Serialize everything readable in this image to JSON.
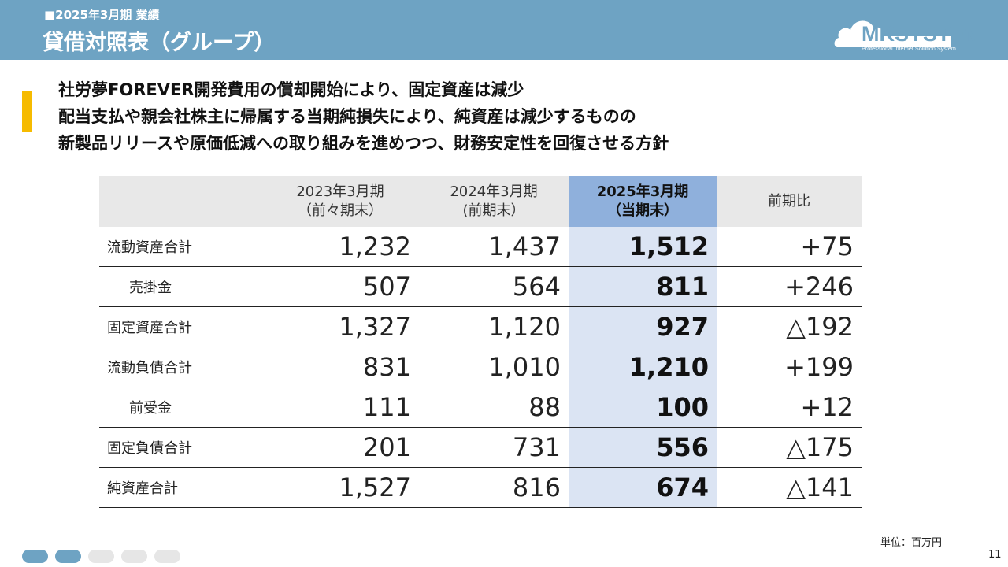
{
  "header": {
    "subtitle": "■2025年3月期 業績",
    "title": "貸借対照表（グループ）",
    "logo": {
      "name": "MKSYSTEM",
      "tagline": "Professional Internet Solution System"
    }
  },
  "colors": {
    "header_bg": "#6ea3c3",
    "accent": "#f6bb00",
    "current_header": "#8fb0dc",
    "current_cell": "#dbe4f3"
  },
  "headline": [
    "社労夢FOREVER開発費用の償却開始により、固定資産は減少",
    "配当支払や親会社株主に帰属する当期純損失により、純資産は減少するものの",
    "新製品リリースや原価低減への取り組みを進めつつ、財務安定性を回復させる方針"
  ],
  "table": {
    "columns": [
      {
        "line1": "2023年3月期",
        "line2": "（前々期末）"
      },
      {
        "line1": "2024年3月期",
        "line2": "(前期末）"
      },
      {
        "line1": "2025年3月期",
        "line2": "（当期末）"
      },
      {
        "line1": "前期比",
        "line2": ""
      }
    ],
    "rows": [
      {
        "label": "流動資産合計",
        "indent": false,
        "values": [
          "1,232",
          "1,437",
          "1,512",
          "+75"
        ]
      },
      {
        "label": "売掛金",
        "indent": true,
        "values": [
          "507",
          "564",
          "811",
          "+246"
        ]
      },
      {
        "label": "固定資産合計",
        "indent": false,
        "values": [
          "1,327",
          "1,120",
          "927",
          "△192"
        ]
      },
      {
        "label": "流動負債合計",
        "indent": false,
        "values": [
          "831",
          "1,010",
          "1,210",
          "+199"
        ]
      },
      {
        "label": "前受金",
        "indent": true,
        "values": [
          "111",
          "88",
          "100",
          "+12"
        ]
      },
      {
        "label": "固定負債合計",
        "indent": false,
        "values": [
          "201",
          "731",
          "556",
          "△175"
        ]
      },
      {
        "label": "純資産合計",
        "indent": false,
        "values": [
          "1,527",
          "816",
          "674",
          "△141"
        ]
      }
    ]
  },
  "unit_note": "単位：百万円",
  "pager": {
    "total": 5,
    "active": [
      1,
      2
    ]
  },
  "page_number": "11"
}
